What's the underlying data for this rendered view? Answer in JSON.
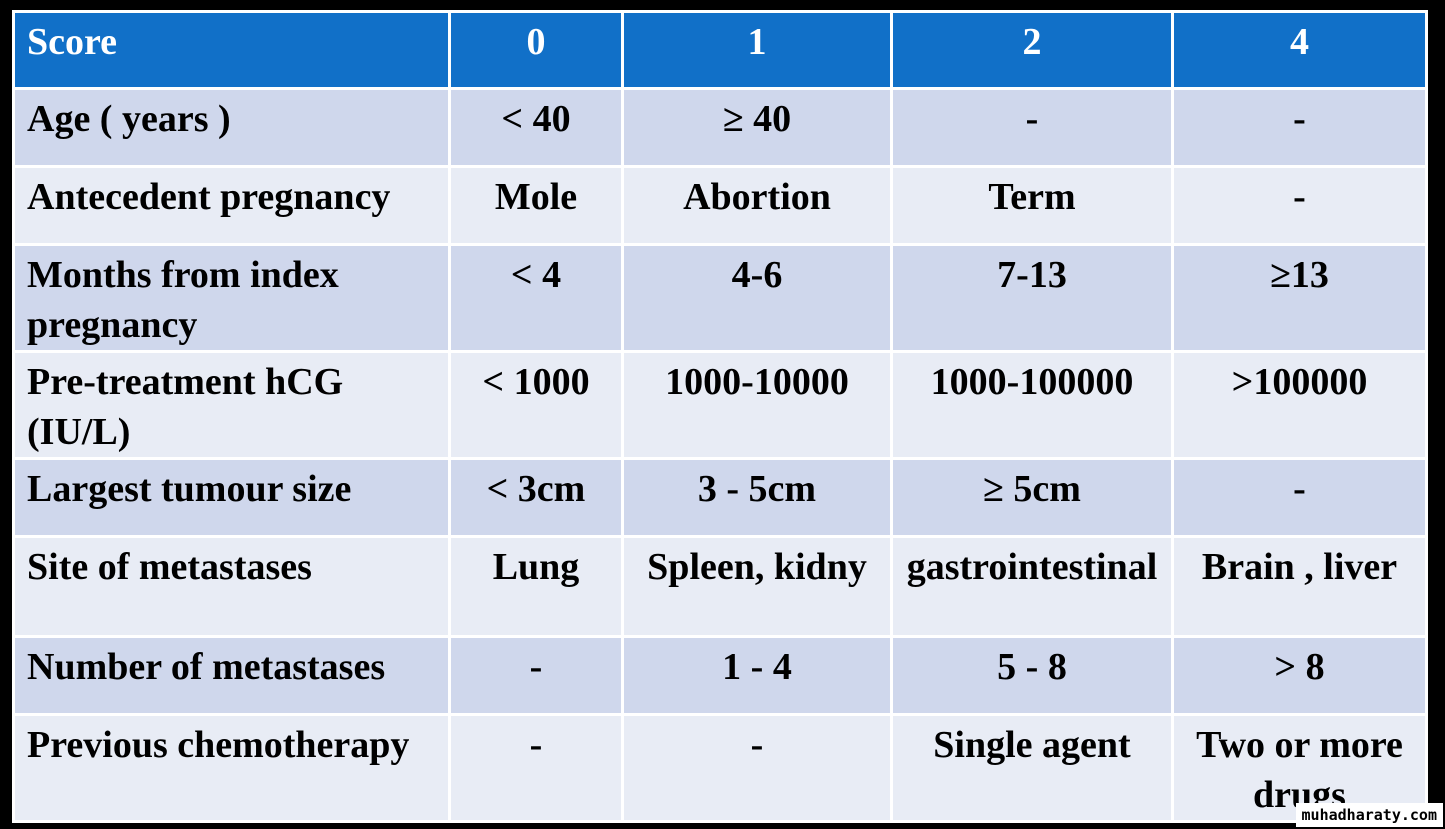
{
  "table": {
    "headers": [
      "Score",
      "0",
      "1",
      "2",
      "4"
    ],
    "rows": [
      [
        "Age ( years )",
        "< 40",
        "≥ 40",
        "-",
        "-"
      ],
      [
        "Antecedent pregnancy",
        "Mole",
        "Abortion",
        "Term",
        "-"
      ],
      [
        "Months from index pregnancy",
        "< 4",
        "4-6",
        "7-13",
        "≥13"
      ],
      [
        "Pre-treatment hCG (IU/L)",
        "< 1000",
        "1000-10000",
        "1000-100000",
        ">100000"
      ],
      [
        "Largest tumour  size",
        "<  3cm",
        "3 - 5cm",
        "≥ 5cm",
        "-"
      ],
      [
        "Site of metastases",
        "Lung",
        "Spleen, kidny",
        "gastrointestinal",
        "Brain , liver"
      ],
      [
        "Number of metastases",
        "-",
        "1 - 4",
        "5 - 8",
        "> 8"
      ],
      [
        "Previous chemotherapy",
        "-",
        "-",
        "Single agent",
        "Two or more drugs"
      ]
    ]
  },
  "colors": {
    "header_bg": "#1170c8",
    "row_odd_bg": "#cfd7ec",
    "row_even_bg": "#e8ecf5",
    "page_bg": "#000000"
  },
  "watermark": "muhadharaty.com"
}
